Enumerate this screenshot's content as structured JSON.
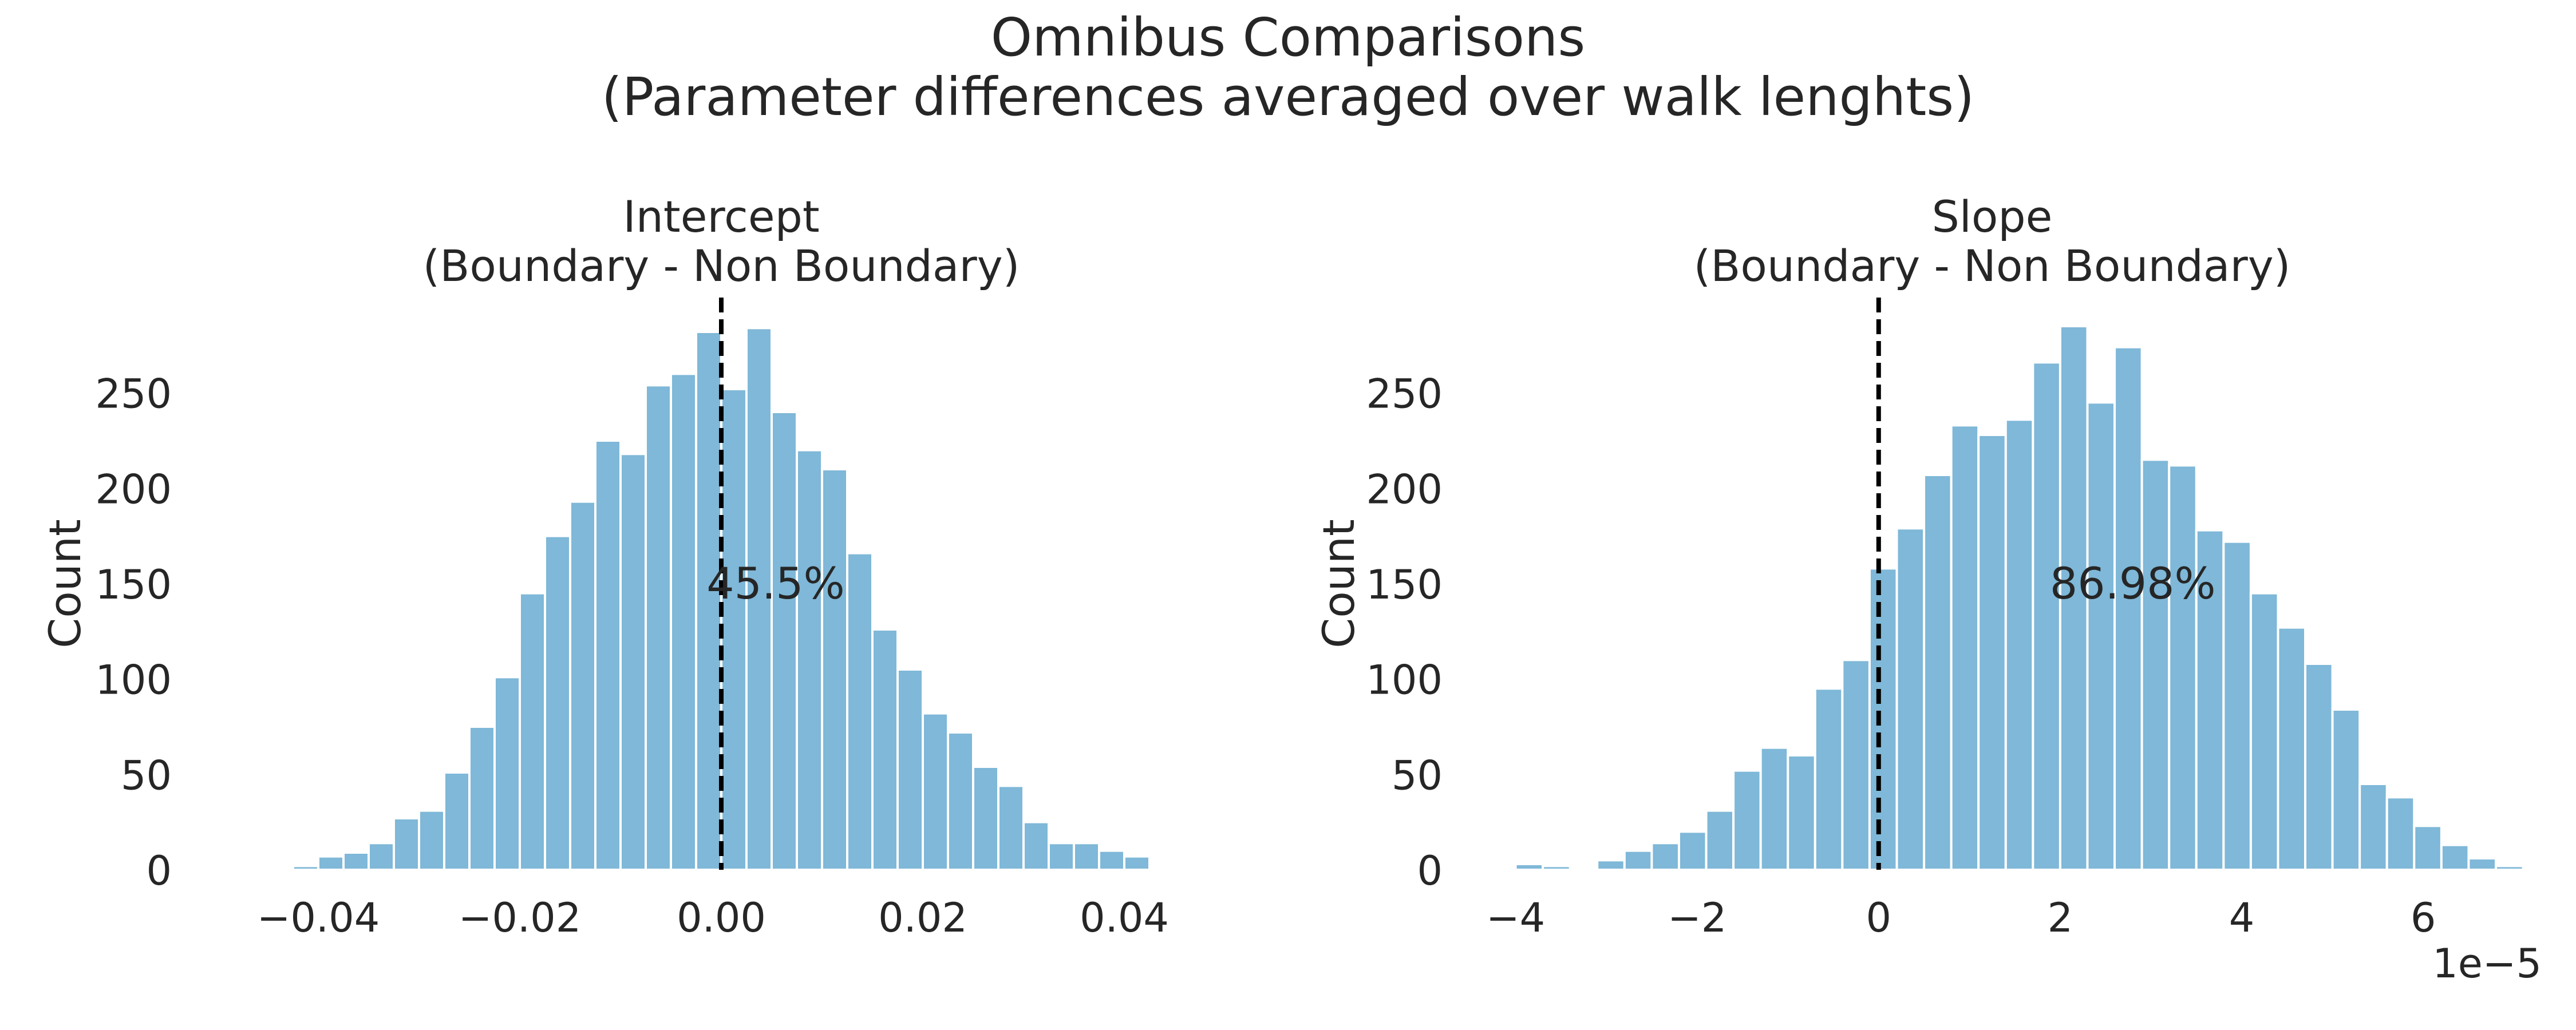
{
  "figure": {
    "title_line1": "Omnibus Comparisons",
    "title_line2": "(Parameter differences averaged over walk lenghts)"
  },
  "colors": {
    "bar": "#7fb8d8",
    "bar_edge": "#ffffff",
    "vline": "#000000"
  },
  "chart_data": [
    {
      "type": "bar",
      "title": "Intercept\n(Boundary - Non Boundary)",
      "ylabel": "Count",
      "xlabel": "",
      "xlim": [
        -0.05,
        0.05
      ],
      "ylim": [
        0,
        300
      ],
      "xticks": [
        -0.04,
        -0.02,
        0.0,
        0.02,
        0.04
      ],
      "xtick_labels": [
        "−0.04",
        "−0.02",
        "0.00",
        "0.02",
        "0.04"
      ],
      "yticks": [
        0,
        50,
        100,
        150,
        200,
        250
      ],
      "ytick_labels": [
        "0",
        "50",
        "100",
        "150",
        "200",
        "250"
      ],
      "offset_label": "",
      "bin_start": -0.0425,
      "bin_width": 0.0025,
      "values": [
        2,
        7,
        9,
        14,
        27,
        31,
        51,
        75,
        101,
        145,
        175,
        193,
        225,
        218,
        254,
        260,
        282,
        252,
        284,
        240,
        220,
        210,
        166,
        126,
        105,
        82,
        72,
        54,
        44,
        25,
        14,
        14,
        10,
        7
      ],
      "vline": 0.0,
      "annotation": {
        "text": "45.5%",
        "x": 0.0,
        "y": 150
      },
      "grid": false
    },
    {
      "type": "bar",
      "title": "Slope\n(Boundary - Non Boundary)",
      "ylabel": "Count",
      "xlabel": "",
      "xlim": [
        -4.3,
        6.8
      ],
      "ylim": [
        0,
        300
      ],
      "xticks": [
        -4,
        -2,
        0,
        2,
        4,
        6
      ],
      "xtick_labels": [
        "−4",
        "−2",
        "0",
        "2",
        "4",
        "6"
      ],
      "yticks": [
        0,
        50,
        100,
        150,
        200,
        250
      ],
      "ytick_labels": [
        "0",
        "50",
        "100",
        "150",
        "200",
        "250"
      ],
      "offset_label": "1e−5",
      "bin_start": -4.0,
      "bin_width": 0.3,
      "values": [
        3,
        2,
        0,
        5,
        10,
        14,
        20,
        31,
        52,
        64,
        60,
        95,
        110,
        158,
        179,
        207,
        233,
        228,
        236,
        266,
        285,
        245,
        274,
        215,
        212,
        178,
        172,
        145,
        127,
        108,
        84,
        45,
        38,
        23,
        13,
        6,
        2
      ],
      "vline": 0.0,
      "annotation": {
        "text": "86.98%",
        "x": 2.8,
        "y": 150
      },
      "grid": false
    }
  ]
}
